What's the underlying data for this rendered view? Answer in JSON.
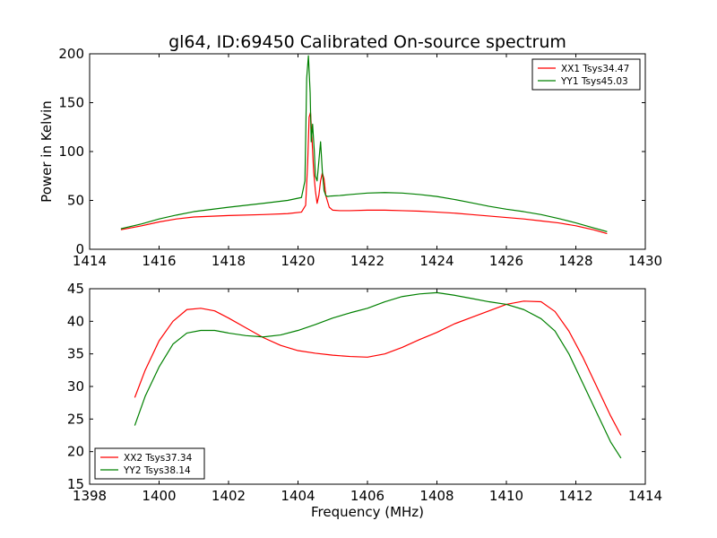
{
  "figure": {
    "title": "gl64, ID:69450 Calibrated On-source spectrum"
  },
  "chart_data": [
    {
      "type": "line",
      "title": "gl64, ID:69450 Calibrated On-source spectrum",
      "xlabel": "",
      "ylabel": "Power in Kelvin",
      "xlim": [
        1414,
        1430
      ],
      "ylim": [
        0,
        200
      ],
      "xticks": [
        1414,
        1416,
        1418,
        1420,
        1422,
        1424,
        1426,
        1428,
        1430
      ],
      "yticks": [
        0,
        50,
        100,
        150,
        200
      ],
      "grid": false,
      "legend_position": "top-right",
      "series": [
        {
          "name": "XX1 Tsys34.47",
          "color": "#ff0000",
          "x": [
            1414.9,
            1415.5,
            1416,
            1416.5,
            1417,
            1418,
            1419,
            1419.7,
            1420.1,
            1420.22,
            1420.28,
            1420.32,
            1420.36,
            1420.4,
            1420.45,
            1420.5,
            1420.55,
            1420.6,
            1420.65,
            1420.7,
            1420.75,
            1420.8,
            1420.9,
            1421.0,
            1421.2,
            1421.5,
            1422,
            1422.5,
            1423,
            1423.5,
            1424,
            1424.5,
            1425,
            1425.5,
            1426,
            1426.5,
            1427,
            1427.5,
            1428,
            1428.5,
            1428.9
          ],
          "y": [
            20,
            24,
            28,
            31,
            33,
            34.5,
            35.5,
            36.5,
            38,
            45,
            90,
            135,
            140,
            115,
            80,
            60,
            47,
            55,
            70,
            78,
            72,
            55,
            43,
            40,
            39.5,
            39.5,
            40,
            40,
            39.5,
            39,
            38,
            37,
            35.5,
            34,
            32.5,
            31,
            29,
            27,
            24,
            20,
            16
          ]
        },
        {
          "name": "YY1 Tsys45.03",
          "color": "#008000",
          "x": [
            1414.9,
            1415.5,
            1416,
            1416.5,
            1417,
            1418,
            1419,
            1419.7,
            1420.1,
            1420.2,
            1420.25,
            1420.3,
            1420.35,
            1420.38,
            1420.42,
            1420.47,
            1420.5,
            1420.55,
            1420.6,
            1420.65,
            1420.7,
            1420.75,
            1420.8,
            1420.85,
            1420.95,
            1421.2,
            1421.5,
            1422,
            1422.5,
            1423,
            1423.5,
            1424,
            1424.5,
            1425,
            1425.5,
            1426,
            1426.5,
            1427,
            1427.5,
            1428,
            1428.5,
            1428.9
          ],
          "y": [
            21,
            26,
            31,
            35,
            38.5,
            43,
            47,
            50,
            53,
            70,
            175,
            198,
            160,
            110,
            128,
            100,
            75,
            70,
            90,
            110,
            80,
            60,
            55,
            54,
            54.5,
            55,
            56,
            57.5,
            58,
            57.5,
            56,
            54,
            51,
            47.5,
            44,
            41,
            38.5,
            35.5,
            31.5,
            27,
            22,
            18
          ]
        }
      ]
    },
    {
      "type": "line",
      "title": "",
      "xlabel": "Frequency (MHz)",
      "ylabel": "",
      "xlim": [
        1398,
        1414
      ],
      "ylim": [
        15,
        45
      ],
      "xticks": [
        1398,
        1400,
        1402,
        1404,
        1406,
        1408,
        1410,
        1412,
        1414
      ],
      "yticks": [
        15,
        20,
        25,
        30,
        35,
        40,
        45
      ],
      "grid": false,
      "legend_position": "bottom-left",
      "series": [
        {
          "name": "XX2 Tsys37.34",
          "color": "#ff0000",
          "x": [
            1399.3,
            1399.6,
            1400,
            1400.4,
            1400.8,
            1401.2,
            1401.6,
            1402,
            1402.5,
            1403,
            1403.5,
            1404,
            1404.5,
            1405,
            1405.5,
            1406,
            1406.5,
            1407,
            1407.5,
            1408,
            1408.5,
            1409,
            1409.5,
            1410,
            1410.5,
            1411,
            1411.4,
            1411.8,
            1412.2,
            1412.6,
            1413,
            1413.3
          ],
          "y": [
            28.3,
            32.5,
            37,
            40,
            41.8,
            42,
            41.6,
            40.5,
            39,
            37.5,
            36.3,
            35.5,
            35.1,
            34.8,
            34.6,
            34.5,
            35,
            36,
            37.2,
            38.3,
            39.6,
            40.6,
            41.6,
            42.6,
            43.1,
            43,
            41.5,
            38.5,
            34.5,
            30,
            25.5,
            22.5
          ]
        },
        {
          "name": "YY2 Tsys38.14",
          "color": "#008000",
          "x": [
            1399.3,
            1399.6,
            1400,
            1400.4,
            1400.8,
            1401.2,
            1401.6,
            1402,
            1402.5,
            1403,
            1403.5,
            1404,
            1404.5,
            1405,
            1405.5,
            1406,
            1406.5,
            1407,
            1407.5,
            1408,
            1408.5,
            1409,
            1409.5,
            1410,
            1410.5,
            1411,
            1411.4,
            1411.8,
            1412.2,
            1412.6,
            1413,
            1413.3
          ],
          "y": [
            24,
            28.5,
            33,
            36.5,
            38.2,
            38.6,
            38.6,
            38.2,
            37.8,
            37.6,
            37.9,
            38.6,
            39.5,
            40.5,
            41.3,
            42,
            43,
            43.8,
            44.2,
            44.4,
            44,
            43.5,
            43,
            42.6,
            41.8,
            40.4,
            38.5,
            35,
            30.5,
            26,
            21.5,
            19
          ]
        }
      ]
    }
  ]
}
